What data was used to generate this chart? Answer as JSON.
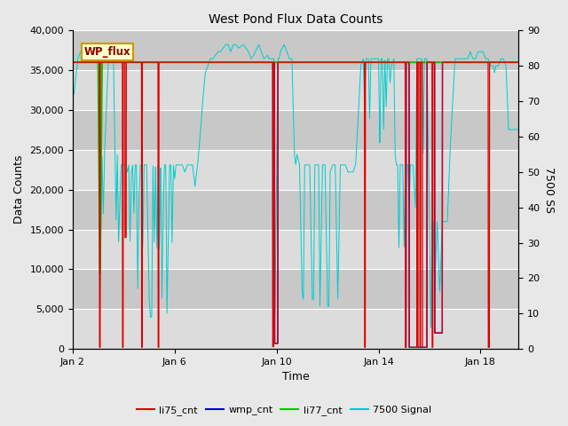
{
  "title": "West Pond Flux Data Counts",
  "xlabel": "Time",
  "ylabel_left": "Data Counts",
  "ylabel_right": "7500 SS",
  "ylim_left": [
    0,
    40000
  ],
  "ylim_right": [
    0,
    90
  ],
  "xtick_labels": [
    "Jan 2",
    "Jan 6",
    "Jan 10",
    "Jan 14",
    "Jan 18"
  ],
  "xtick_positions": [
    2,
    6,
    10,
    14,
    18
  ],
  "ytick_left": [
    0,
    5000,
    10000,
    15000,
    20000,
    25000,
    30000,
    35000,
    40000
  ],
  "ytick_right": [
    0,
    10,
    20,
    30,
    40,
    50,
    60,
    70,
    80,
    90
  ],
  "bg_color": "#e8e8e8",
  "plot_bg_color_light": "#dcdcdc",
  "plot_bg_color_dark": "#c8c8c8",
  "legend_label": "WP_flux",
  "legend_bg": "#ffffcc",
  "legend_edge": "#cc9900",
  "series_colors": {
    "li75_cnt": "#dd0000",
    "wmp_cnt": "#0000cc",
    "li77_cnt": "#00cc00",
    "signal_7500": "#00cccc"
  },
  "legend_entries": [
    "li75_cnt",
    "wmp_cnt",
    "li77_cnt",
    "7500 Signal"
  ],
  "xlim": [
    2,
    19.5
  ]
}
